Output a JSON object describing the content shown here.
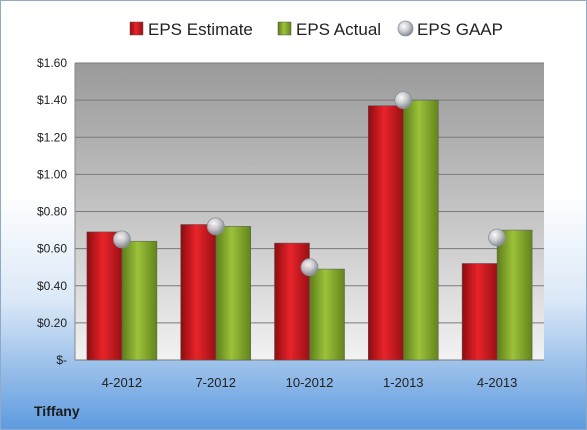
{
  "company": "Tiffany",
  "chart_data": {
    "type": "bar",
    "categories": [
      "4-2012",
      "7-2012",
      "10-2012",
      "1-2013",
      "4-2013"
    ],
    "series": [
      {
        "name": "EPS Estimate",
        "kind": "bar",
        "color": "#c0151b",
        "values": [
          0.69,
          0.73,
          0.63,
          1.37,
          0.52
        ]
      },
      {
        "name": "EPS Actual",
        "kind": "bar",
        "color": "#7fa62a",
        "values": [
          0.64,
          0.72,
          0.49,
          1.4,
          0.7
        ]
      },
      {
        "name": "EPS GAAP",
        "kind": "marker",
        "color": "#b4b9c2",
        "values": [
          0.65,
          0.72,
          0.5,
          1.4,
          0.66
        ]
      }
    ],
    "y_tick_labels": [
      "$-",
      "$0.20",
      "$0.40",
      "$0.60",
      "$0.80",
      "$1.00",
      "$1.20",
      "$1.40",
      "$1.60"
    ],
    "ylim": [
      0,
      1.6
    ],
    "y_step": 0.2,
    "grid": true,
    "legend_position": "top"
  }
}
